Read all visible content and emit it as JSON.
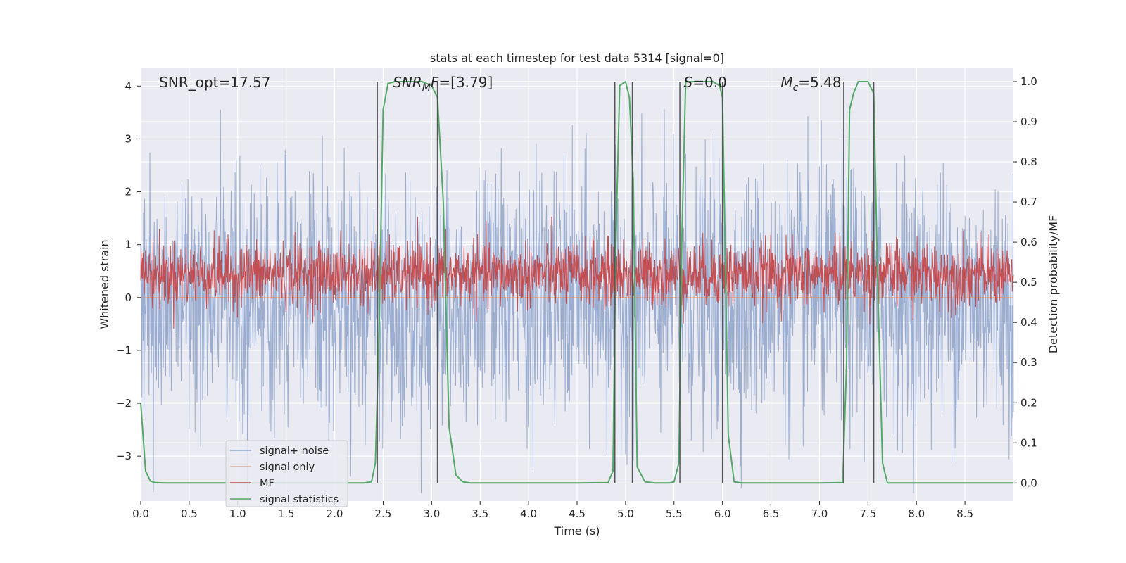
{
  "chart_data": {
    "type": "line",
    "title": "stats at each timestep for test data 5314 [signal=0]",
    "xlabel": "Time (s)",
    "ylabel": "Whitened strain",
    "ylabel_right": "Detection probability/MF",
    "xlim": [
      0,
      9.0
    ],
    "ylim": [
      -3.85,
      4.35
    ],
    "ylim_right": [
      -0.045,
      1.035
    ],
    "x_ticks": [
      0.0,
      0.5,
      1.0,
      1.5,
      2.0,
      2.5,
      3.0,
      3.5,
      4.0,
      4.5,
      5.0,
      5.5,
      6.0,
      6.5,
      7.0,
      7.5,
      8.0,
      8.5
    ],
    "x_tick_labels": [
      "0.0",
      "0.5",
      "1.0",
      "1.5",
      "2.0",
      "2.5",
      "3.0",
      "3.5",
      "4.0",
      "4.5",
      "5.0",
      "5.5",
      "6.0",
      "6.5",
      "7.0",
      "7.5",
      "8.0",
      "8.5"
    ],
    "y_ticks": [
      4,
      3,
      2,
      1,
      0,
      -1,
      -2,
      -3
    ],
    "y_tick_labels": [
      "4",
      "3",
      "2",
      "1",
      "0",
      "−1",
      "−2",
      "−3"
    ],
    "y_right_ticks": [
      1.0,
      0.9,
      0.8,
      0.7,
      0.6,
      0.5,
      0.4,
      0.3,
      0.2,
      0.1,
      0.0
    ],
    "y_right_tick_labels": [
      "1.0",
      "0.9",
      "0.8",
      "0.7",
      "0.6",
      "0.5",
      "0.4",
      "0.3",
      "0.2",
      "0.1",
      "0.0"
    ],
    "annotations": [
      {
        "prefix": "SNR_opt",
        "sub": "",
        "text": "=17.57",
        "italic": false,
        "x": 0.19
      },
      {
        "prefix": "SNR",
        "sub": "M",
        "text": "F=[3.79]",
        "italic": true,
        "x": 2.6
      },
      {
        "prefix": "S",
        "sub": "",
        "text": "=0.0",
        "italic": true,
        "x": 5.6
      },
      {
        "prefix": "M",
        "sub": "c",
        "text": "=5.48",
        "italic": true,
        "x": 6.6
      }
    ],
    "vlines": [
      2.44,
      3.06,
      4.89,
      5.07,
      5.56,
      6.0,
      7.25,
      7.56
    ],
    "series": [
      {
        "name": "signal+ noise",
        "color": "#4c72b0",
        "kind": "noise",
        "amplitude": 1.2,
        "axis": "left"
      },
      {
        "name": "signal only",
        "color": "#dd8452",
        "kind": "flat",
        "value": 0.0,
        "axis": "left"
      },
      {
        "name": "MF",
        "color": "#c44e52",
        "kind": "mf",
        "center": 0.52,
        "spread": 0.04,
        "axis": "right"
      },
      {
        "name": "signal statistics",
        "color": "#55a868",
        "axis": "right",
        "x": [
          0.0,
          0.05,
          0.1,
          0.15,
          0.25,
          0.5,
          1.0,
          1.5,
          2.0,
          2.3,
          2.38,
          2.42,
          2.46,
          2.5,
          2.55,
          2.62,
          2.7,
          2.9,
          3.0,
          3.06,
          3.12,
          3.18,
          3.25,
          3.32,
          3.4,
          3.6,
          4.0,
          4.5,
          4.82,
          4.87,
          4.9,
          4.94,
          5.0,
          5.04,
          5.08,
          5.12,
          5.2,
          5.3,
          5.45,
          5.5,
          5.55,
          5.58,
          5.62,
          5.7,
          5.9,
          5.97,
          6.0,
          6.06,
          6.12,
          6.2,
          6.5,
          7.0,
          7.24,
          7.28,
          7.31,
          7.35,
          7.4,
          7.5,
          7.56,
          7.6,
          7.65,
          7.7,
          8.0,
          8.5,
          9.0
        ],
        "y": [
          0.2,
          0.03,
          0.005,
          0.001,
          0.0,
          0.0,
          0.0,
          0.0,
          0.0,
          0.0,
          0.003,
          0.05,
          0.4,
          0.93,
          0.995,
          1.0,
          1.0,
          1.0,
          0.99,
          0.96,
          0.7,
          0.14,
          0.02,
          0.003,
          0.0,
          0.0,
          0.0,
          0.0,
          0.001,
          0.03,
          0.6,
          0.99,
          1.0,
          0.96,
          0.75,
          0.04,
          0.003,
          0.0,
          0.0,
          0.003,
          0.05,
          0.6,
          0.999,
          1.0,
          1.0,
          0.99,
          0.96,
          0.12,
          0.003,
          0.0,
          0.0,
          0.0,
          0.001,
          0.3,
          0.93,
          0.97,
          1.0,
          1.0,
          0.97,
          0.5,
          0.05,
          0.0,
          0.0,
          0.0,
          0.0
        ]
      }
    ],
    "legend_location": "lower-left"
  }
}
